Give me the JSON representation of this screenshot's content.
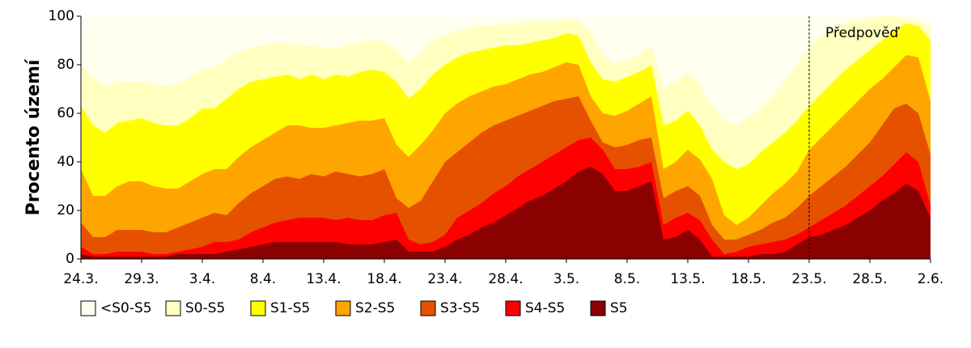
{
  "chart_data": {
    "type": "area",
    "y_label": "Procento území",
    "categories": [
      "24.3.",
      null,
      null,
      null,
      null,
      "29.3.",
      null,
      null,
      null,
      null,
      "3.4.",
      null,
      null,
      null,
      null,
      "8.4.",
      null,
      null,
      null,
      null,
      "13.4.",
      null,
      null,
      null,
      null,
      "18.4.",
      null,
      null,
      null,
      null,
      "23.4.",
      null,
      null,
      null,
      null,
      "28.4.",
      null,
      null,
      null,
      null,
      "3.5.",
      null,
      null,
      null,
      null,
      "8.5.",
      null,
      null,
      null,
      null,
      "13.5.",
      null,
      null,
      null,
      null,
      "18.5.",
      null,
      null,
      null,
      null,
      "23.5.",
      null,
      null,
      null,
      null,
      "28.5.",
      null,
      null,
      null,
      null,
      "2.6."
    ],
    "ylim": [
      0,
      100
    ],
    "yticks": [
      0,
      20,
      40,
      60,
      80,
      100
    ],
    "annotation": {
      "text": "Předpověď",
      "category": "23.5."
    },
    "series": [
      {
        "name": "<S0-S5",
        "color": "#fffff0",
        "values": [
          100,
          100,
          100,
          100,
          100,
          100,
          100,
          100,
          100,
          100,
          100,
          100,
          100,
          100,
          100,
          100,
          100,
          100,
          100,
          100,
          100,
          100,
          100,
          100,
          100,
          100,
          100,
          100,
          100,
          100,
          100,
          100,
          100,
          100,
          100,
          100,
          100,
          100,
          100,
          100,
          100,
          100,
          100,
          100,
          100,
          100,
          100,
          100,
          100,
          100,
          100,
          100,
          100,
          100,
          100,
          100,
          100,
          100,
          100,
          100,
          100,
          100,
          100,
          100,
          100,
          100,
          100,
          100,
          100,
          100,
          100
        ]
      },
      {
        "name": "S0-S5",
        "color": "#ffffc0",
        "values": [
          80,
          75,
          71,
          73,
          73,
          73,
          72,
          71,
          72,
          75,
          78,
          79,
          82,
          85,
          87,
          88,
          89,
          89,
          88,
          88,
          87,
          87,
          88,
          89,
          90,
          90,
          86,
          81,
          85,
          90,
          92,
          94,
          95,
          96,
          96,
          97,
          97,
          98,
          98,
          98,
          99,
          98,
          93,
          84,
          80,
          82,
          84,
          88,
          70,
          73,
          77,
          72,
          63,
          57,
          55,
          58,
          62,
          67,
          73,
          80,
          87,
          92,
          95,
          97,
          98,
          99,
          100,
          100,
          99,
          98,
          96
        ]
      },
      {
        "name": "S1-S5",
        "color": "#ffff00",
        "values": [
          63,
          55,
          52,
          56,
          57,
          58,
          56,
          55,
          55,
          58,
          62,
          62,
          66,
          70,
          73,
          74,
          75,
          76,
          74,
          76,
          74,
          76,
          75,
          77,
          78,
          77,
          73,
          66,
          70,
          76,
          80,
          83,
          85,
          86,
          87,
          88,
          88,
          89,
          90,
          91,
          93,
          92,
          81,
          74,
          73,
          75,
          77,
          80,
          55,
          57,
          61,
          55,
          45,
          40,
          37,
          39,
          44,
          48,
          52,
          57,
          63,
          68,
          73,
          78,
          82,
          86,
          90,
          94,
          97,
          96,
          90
        ]
      },
      {
        "name": "S2-S5",
        "color": "#ffa500",
        "values": [
          37,
          26,
          26,
          30,
          32,
          32,
          30,
          29,
          29,
          32,
          35,
          37,
          37,
          42,
          46,
          49,
          52,
          55,
          55,
          54,
          54,
          55,
          56,
          57,
          57,
          58,
          47,
          42,
          47,
          53,
          60,
          64,
          67,
          69,
          71,
          72,
          74,
          76,
          77,
          79,
          81,
          80,
          67,
          60,
          59,
          61,
          64,
          67,
          37,
          40,
          45,
          41,
          33,
          18,
          14,
          17,
          22,
          27,
          31,
          36,
          45,
          50,
          55,
          60,
          65,
          70,
          74,
          79,
          84,
          83,
          65
        ]
      },
      {
        "name": "S3-S5",
        "color": "#e65100",
        "values": [
          15,
          9,
          9,
          12,
          12,
          12,
          11,
          11,
          13,
          15,
          17,
          19,
          18,
          23,
          27,
          30,
          33,
          34,
          33,
          35,
          34,
          36,
          35,
          34,
          35,
          37,
          25,
          21,
          24,
          32,
          40,
          44,
          48,
          52,
          55,
          57,
          59,
          61,
          63,
          65,
          66,
          67,
          57,
          48,
          46,
          47,
          49,
          50,
          25,
          28,
          30,
          26,
          14,
          8,
          8,
          10,
          12,
          15,
          17,
          21,
          26,
          30,
          34,
          38,
          43,
          48,
          55,
          62,
          64,
          60,
          43
        ]
      },
      {
        "name": "S4-S5",
        "color": "#ff0000",
        "values": [
          5,
          2,
          2,
          3,
          3,
          3,
          2,
          2,
          3,
          4,
          5,
          7,
          7,
          8,
          11,
          13,
          15,
          16,
          17,
          17,
          17,
          16,
          17,
          16,
          16,
          18,
          19,
          8,
          6,
          7,
          10,
          17,
          20,
          23,
          27,
          30,
          34,
          37,
          40,
          43,
          46,
          49,
          50,
          45,
          37,
          37,
          38,
          40,
          14,
          17,
          19,
          16,
          8,
          2,
          3,
          5,
          6,
          7,
          8,
          10,
          13,
          16,
          19,
          22,
          26,
          30,
          34,
          39,
          44,
          40,
          22
        ]
      },
      {
        "name": "S5",
        "color": "#8b0000",
        "values": [
          2,
          1,
          1,
          1,
          1,
          1,
          1,
          1,
          2,
          2,
          2,
          2,
          3,
          4,
          5,
          6,
          7,
          7,
          7,
          7,
          7,
          7,
          6,
          6,
          6,
          7,
          8,
          3,
          3,
          3,
          5,
          8,
          10,
          13,
          15,
          18,
          21,
          24,
          26,
          29,
          32,
          36,
          38,
          35,
          28,
          28,
          30,
          32,
          8,
          9,
          12,
          8,
          1,
          1,
          1,
          1,
          2,
          2,
          3,
          6,
          9,
          10,
          12,
          14,
          17,
          20,
          24,
          27,
          31,
          28,
          17
        ]
      }
    ]
  }
}
